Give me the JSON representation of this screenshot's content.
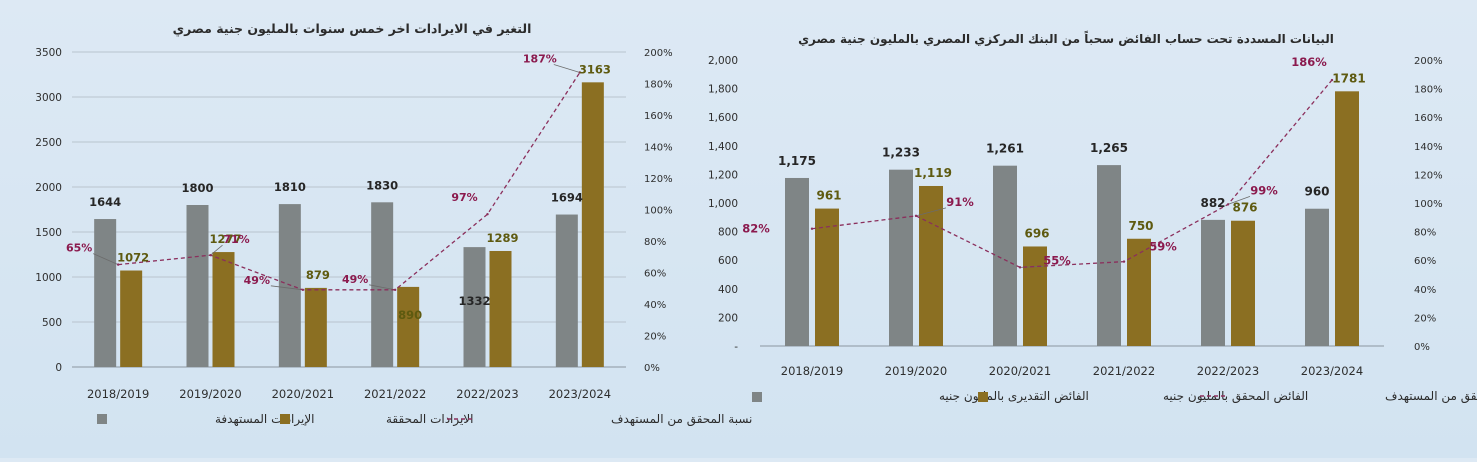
{
  "colors": {
    "target": "#7f8586",
    "actual": "#8b6f22",
    "ratio_line": "#8b2f5c",
    "ratio_label": "#8b1a4e",
    "target_label": "#262626",
    "actual_label": "#5e5a10",
    "axis_text": "#2e2e2e",
    "grid": "#b9c4ce"
  },
  "chart_data": [
    {
      "type": "bar",
      "title": "التغير في الايرادات اخر خمس سنوات بالمليون جنية مصري",
      "categories": [
        "2018/2019",
        "2019/2020",
        "2020/2021",
        "2021/2022",
        "2022/2023",
        "2023/2024"
      ],
      "series": [
        {
          "name": "الإيرادات المستهدفة",
          "values": [
            1644,
            1800,
            1810,
            1830,
            1332,
            1694
          ]
        },
        {
          "name": "الايرادات المحققة",
          "values": [
            1072,
            1277,
            879,
            890,
            1289,
            3163
          ]
        }
      ],
      "line_series": {
        "name": "نسبة المحقق من المستهدف",
        "type": "line",
        "axis": "secondary",
        "values": [
          65,
          71,
          49,
          49,
          97,
          187
        ]
      },
      "ylim": [
        0,
        3500
      ],
      "yticks": [
        0,
        500,
        1000,
        1500,
        2000,
        2500,
        3000,
        3500
      ],
      "ytick_labels": [
        "0",
        "500",
        "1000",
        "1500",
        "2000",
        "2500",
        "3000",
        "3500"
      ],
      "y2lim": [
        0,
        200
      ],
      "y2ticks": [
        0,
        20,
        40,
        60,
        80,
        100,
        120,
        140,
        160,
        180,
        200
      ],
      "y2tick_labels": [
        "0%",
        "20%",
        "40%",
        "60%",
        "80%",
        "100%",
        "120%",
        "140%",
        "160%",
        "180%",
        "200%"
      ],
      "target_labels": [
        "1644",
        "1800",
        "1810",
        "1830",
        "1332",
        "1694"
      ],
      "actual_labels": [
        "1072",
        "1277",
        "879",
        "890",
        "1289",
        "3163"
      ],
      "ratio_labels": [
        "65%",
        "71%",
        "49%",
        "49%",
        "97%",
        "187%"
      ],
      "grid": true,
      "legend_position": "bottom",
      "legend": [
        "الإيرادات المستهدفة",
        "الايرادات المحققة",
        "نسبة المحقق من المستهدف"
      ]
    },
    {
      "type": "bar",
      "title": "البيانات المسددة تحت حساب الفائض سحباً من البنك المركزي المصري بالمليون جنية مصري",
      "categories": [
        "2018/2019",
        "2019/2020",
        "2020/2021",
        "2021/2022",
        "2022/2023",
        "2023/2024"
      ],
      "series": [
        {
          "name": "الفائض التقديرى بالمليون جنيه",
          "values": [
            1175,
            1233,
            1261,
            1265,
            882,
            960
          ]
        },
        {
          "name": "الفائض المحقق بالمليون جنيه",
          "values": [
            961,
            1119,
            696,
            750,
            876,
            1781
          ]
        }
      ],
      "line_series": {
        "name": "نسبة المحقق من المستهدف",
        "type": "line",
        "axis": "secondary",
        "values": [
          82,
          91,
          55,
          59,
          99,
          186
        ]
      },
      "ylim": [
        0,
        2000
      ],
      "yticks": [
        0,
        200,
        400,
        600,
        800,
        1000,
        1200,
        1400,
        1600,
        1800,
        2000
      ],
      "ytick_labels": [
        "-",
        "200",
        "400",
        "600",
        "800",
        "1,000",
        "1,200",
        "1,400",
        "1,600",
        "1,800",
        "2,000"
      ],
      "y2lim": [
        0,
        200
      ],
      "y2ticks": [
        0,
        20,
        40,
        60,
        80,
        100,
        120,
        140,
        160,
        180,
        200
      ],
      "y2tick_labels": [
        "0%",
        "20%",
        "40%",
        "60%",
        "80%",
        "100%",
        "120%",
        "140%",
        "160%",
        "180%",
        "200%"
      ],
      "target_labels": [
        "1,175",
        "1,233",
        "1,261",
        "1,265",
        "882",
        "960"
      ],
      "actual_labels": [
        "961",
        "1,119",
        "696",
        "750",
        "876",
        "1781"
      ],
      "ratio_labels": [
        "82%",
        "91%",
        "55%",
        "59%",
        "99%",
        "186%"
      ],
      "grid": true,
      "legend_position": "bottom",
      "legend": [
        "الفائض التقديرى بالمليون جنيه",
        "الفائض المحقق بالمليون جنيه",
        "نسبة المحقق من المستهدف"
      ]
    }
  ]
}
